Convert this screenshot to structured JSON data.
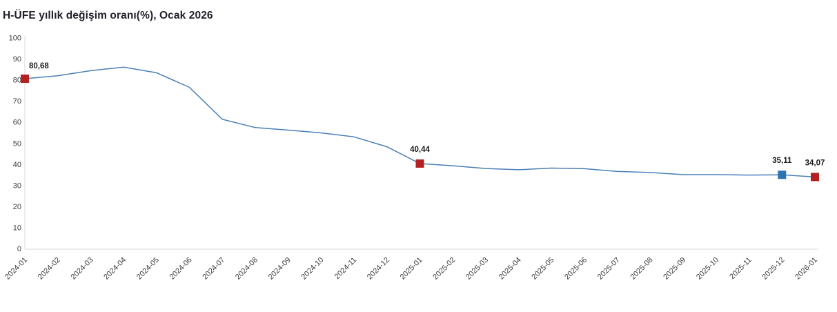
{
  "title": "H-ÜFE yıllık değişim oranı(%), Ocak 2026",
  "chart_data": {
    "type": "line",
    "title": "H-ÜFE yıllık değişim oranı(%), Ocak 2026",
    "xlabel": "",
    "ylabel": "",
    "ylim": [
      0,
      100
    ],
    "ytick_step": 10,
    "grid": false,
    "legend_position": "none",
    "decimal_separator": ",",
    "categories": [
      "2024-01",
      "2024-02",
      "2024-03",
      "2024-04",
      "2024-05",
      "2024-06",
      "2024-07",
      "2024-08",
      "2024-09",
      "2024-10",
      "2024-11",
      "2024-12",
      "2025-01",
      "2025-02",
      "2025-03",
      "2025-04",
      "2025-05",
      "2025-06",
      "2025-07",
      "2025-08",
      "2025-09",
      "2025-10",
      "2025-11",
      "2025-12",
      "2026-01"
    ],
    "values": [
      80.68,
      82.1,
      84.5,
      86.2,
      83.5,
      76.6,
      61.4,
      57.5,
      56.3,
      55.0,
      53.1,
      48.4,
      40.44,
      39.4,
      38.1,
      37.5,
      38.3,
      38.0,
      36.7,
      36.2,
      35.2,
      35.2,
      35.0,
      35.11,
      34.07
    ],
    "labeled_points": [
      {
        "category": "2024-01",
        "value": 80.68,
        "label": "80,68",
        "marker_color": "#b42121",
        "label_align": "right"
      },
      {
        "category": "2025-01",
        "value": 40.44,
        "label": "40,44",
        "marker_color": "#b42121",
        "label_align": "center"
      },
      {
        "category": "2025-12",
        "value": 35.11,
        "label": "35,11",
        "marker_color": "#2e74b5",
        "label_align": "center"
      },
      {
        "category": "2026-01",
        "value": 34.07,
        "label": "34,07",
        "marker_color": "#b42121",
        "label_align": "center"
      }
    ],
    "colors": {
      "line": "#4a7fb5",
      "marker_red": "#b42121",
      "marker_blue": "#2e74b5",
      "axis_line": "#d9d9d9",
      "axis_text": "#3c3c3c",
      "point_label_text": "#1a1a1a",
      "title_text": "#20202a",
      "background": "#ffffff"
    }
  }
}
